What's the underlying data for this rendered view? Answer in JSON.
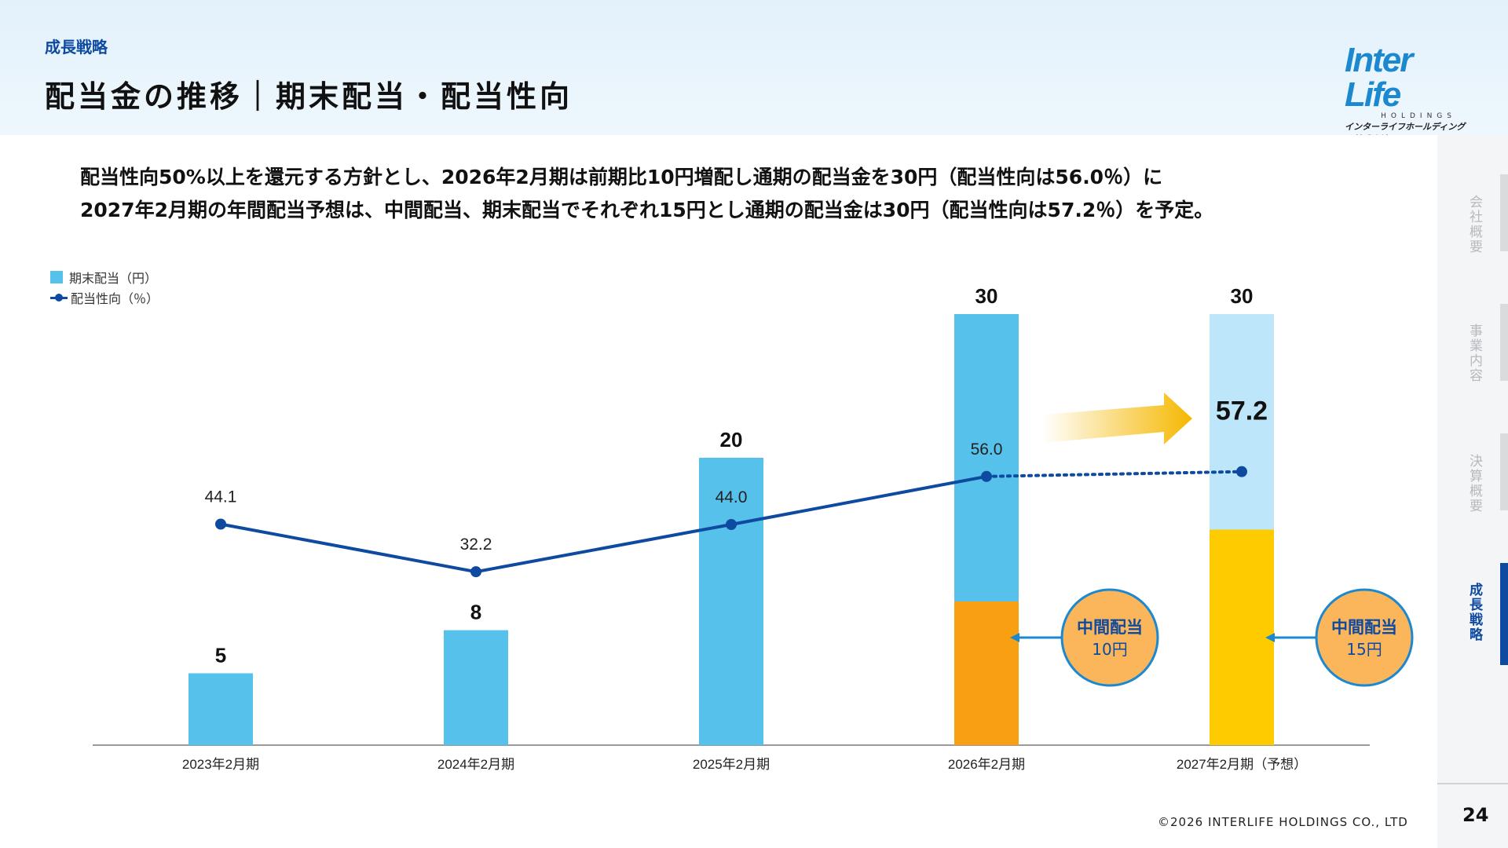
{
  "header": {
    "section_label": "成長戦略",
    "title": "配当金の推移｜期末配当・配当性向"
  },
  "logo": {
    "name": "Inter Life",
    "sub": "HOLDINGS",
    "jp": "インターライフホールディングス株式会社"
  },
  "description": {
    "line1": "配当性向50%以上を還元する方針とし、2026年2月期は前期比10円増配し通期の配当金を30円（配当性向は56.0％）に",
    "line2": "2027年2月期の年間配当予想は、中間配当、期末配当でそれぞれ15円とし通期の配当金は30円（配当性向は57.2％）を予定。"
  },
  "legend": {
    "bar": "期末配当（円）",
    "line": "配当性向（％）"
  },
  "chart_data": {
    "type": "bar",
    "categories": [
      "2023年2月期",
      "2024年2月期",
      "2025年2月期",
      "2026年2月期",
      "2027年2月期（予想）"
    ],
    "series": [
      {
        "name": "期末配当（円）",
        "values": [
          5,
          8,
          20,
          20,
          15
        ]
      },
      {
        "name": "中間配当",
        "values": [
          0,
          0,
          0,
          10,
          15
        ]
      },
      {
        "name": "配当性向（％）",
        "type": "line",
        "values": [
          44.1,
          32.2,
          44.0,
          56.0,
          57.2
        ]
      }
    ],
    "totals": [
      5,
      8,
      20,
      30,
      30
    ],
    "forecast_index": 4,
    "interim_callouts": [
      {
        "category": "2026年2月期",
        "line1": "中間配当",
        "line2": "10円"
      },
      {
        "category": "2027年2月期（予想）",
        "line1": "中間配当",
        "line2": "15円"
      }
    ],
    "ylim_bar": [
      0,
      30
    ],
    "colors": {
      "final_bar": "#56c1ea",
      "interim_2026": "#f8a012",
      "final_forecast": "#bde6fb",
      "interim_forecast": "#fecb00",
      "line": "#0d4aa0",
      "arrow": "#f5b800",
      "callout_fill": "#fbb65b",
      "callout_border": "#1b88d0"
    }
  },
  "sidenav": {
    "items": [
      {
        "label": "会社概要",
        "active": false
      },
      {
        "label": "事業内容",
        "active": false
      },
      {
        "label": "決算概要",
        "active": false
      },
      {
        "label": "成長戦略",
        "active": true
      }
    ]
  },
  "footer": {
    "page_number": "24",
    "copyright": "©2026 INTERLIFE HOLDINGS CO., LTD"
  }
}
